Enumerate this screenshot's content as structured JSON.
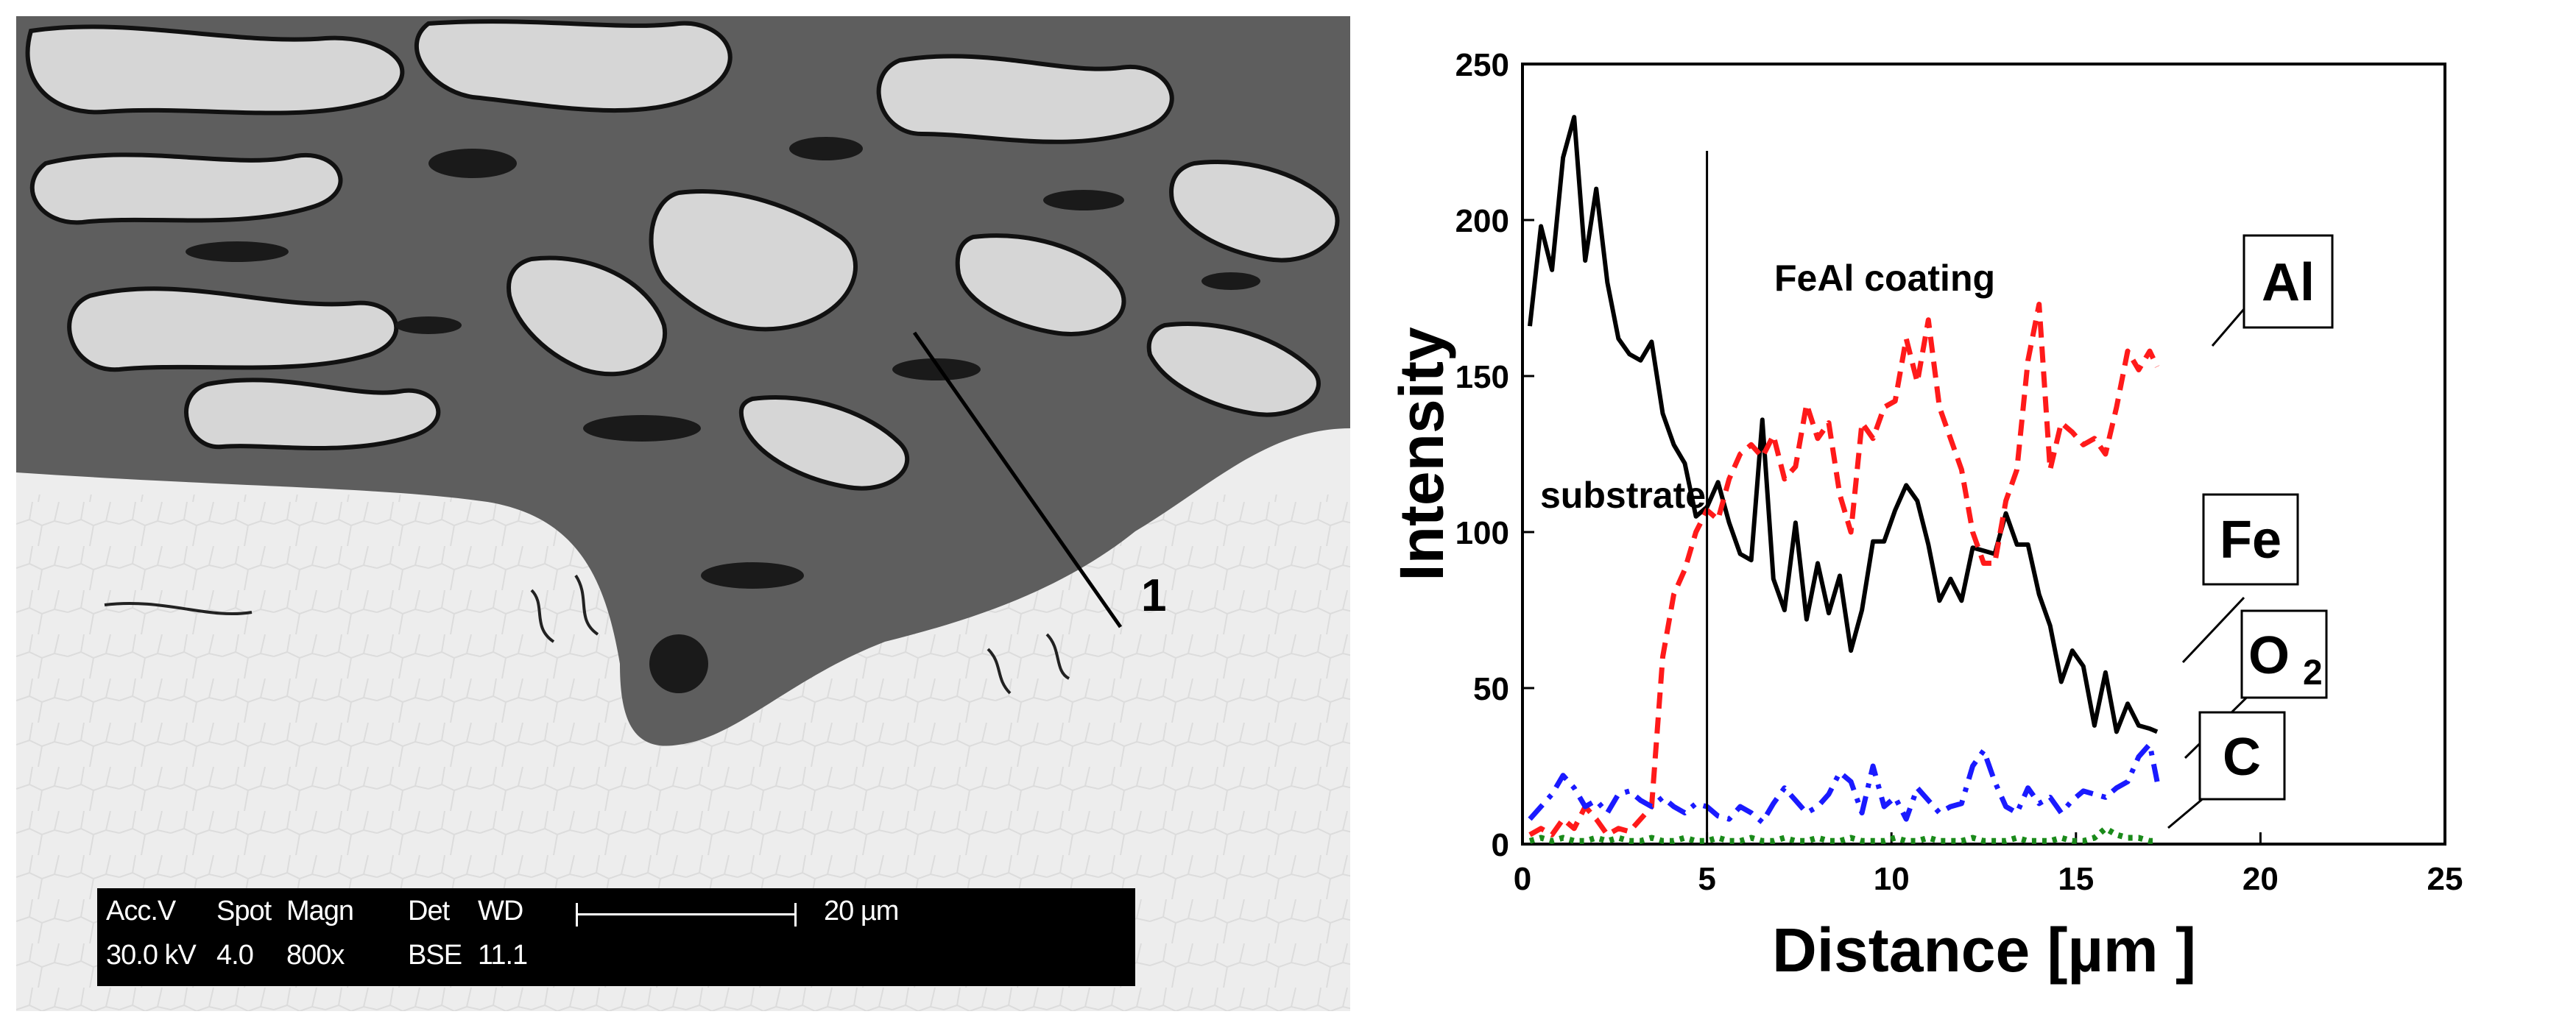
{
  "sem_image": {
    "databar": {
      "row1": [
        "Acc.V",
        "Spot",
        "Magn",
        "Det",
        "WD"
      ],
      "row2": [
        "30.0 kV",
        "4.0",
        "800x",
        "BSE",
        "11.1"
      ],
      "scale_label": "20 µm"
    },
    "marker": "1"
  },
  "chart_data": {
    "type": "line",
    "xlabel": "Distance [µm ]",
    "ylabel": "Intensity",
    "xlim": [
      0,
      25
    ],
    "ylim": [
      0,
      250
    ],
    "xticks": [
      "0",
      "5",
      "10",
      "15",
      "20",
      "25"
    ],
    "yticks": [
      "0",
      "50",
      "100",
      "150",
      "200",
      "250"
    ],
    "grid": false,
    "vline_x": 5,
    "annotations": {
      "substrate": "substrate",
      "coating": "FeAl coating",
      "al": "Al",
      "fe": "Fe",
      "o2_base": "O",
      "o2_sub": "2",
      "c": "C"
    },
    "colors": {
      "Fe": "#000000",
      "Al": "#ff1a1a",
      "O2": "#1a1aff",
      "C": "#1a8a1a"
    },
    "series": [
      {
        "key": "Fe",
        "style": "solid",
        "x": [
          0.2,
          0.5,
          0.8,
          1.1,
          1.4,
          1.7,
          2.0,
          2.3,
          2.6,
          2.9,
          3.2,
          3.5,
          3.8,
          4.1,
          4.4,
          4.7,
          5.0,
          5.3,
          5.6,
          5.9,
          6.2,
          6.5,
          6.8,
          7.1,
          7.4,
          7.7,
          8.0,
          8.3,
          8.6,
          8.9,
          9.2,
          9.5,
          9.8,
          10.1,
          10.4,
          10.7,
          11.0,
          11.3,
          11.6,
          11.9,
          12.2,
          12.5,
          12.8,
          13.1,
          13.4,
          13.7,
          14.0,
          14.3,
          14.6,
          14.9,
          15.2,
          15.5,
          15.8,
          16.1,
          16.4,
          16.7,
          17.0,
          17.2
        ],
        "y": [
          166,
          198,
          184,
          220,
          233,
          187,
          210,
          180,
          162,
          157,
          155,
          161,
          138,
          128,
          122,
          105,
          108,
          116,
          103,
          93,
          91,
          136,
          85,
          75,
          103,
          72,
          90,
          74,
          86,
          62,
          75,
          97,
          97,
          107,
          115,
          110,
          96,
          78,
          85,
          78,
          95,
          94,
          93,
          106,
          96,
          96,
          80,
          70,
          52,
          62,
          57,
          38,
          55,
          36,
          45,
          38,
          37,
          36
        ]
      },
      {
        "key": "Al",
        "style": "dashed",
        "x": [
          0.2,
          0.5,
          0.8,
          1.1,
          1.4,
          1.7,
          2.0,
          2.3,
          2.6,
          2.9,
          3.2,
          3.5,
          3.8,
          4.1,
          4.4,
          4.7,
          5.0,
          5.3,
          5.6,
          5.9,
          6.2,
          6.5,
          6.8,
          7.1,
          7.4,
          7.7,
          8.0,
          8.3,
          8.6,
          8.9,
          9.2,
          9.5,
          9.8,
          10.1,
          10.4,
          10.7,
          11.0,
          11.3,
          11.6,
          11.9,
          12.2,
          12.5,
          12.8,
          13.1,
          13.4,
          13.7,
          14.0,
          14.3,
          14.6,
          14.9,
          15.2,
          15.5,
          15.8,
          16.1,
          16.4,
          16.7,
          17.0,
          17.2
        ],
        "y": [
          3,
          5,
          3,
          8,
          5,
          12,
          8,
          3,
          5,
          4,
          8,
          12,
          60,
          80,
          88,
          100,
          107,
          104,
          117,
          125,
          128,
          124,
          131,
          117,
          121,
          141,
          130,
          135,
          112,
          100,
          135,
          130,
          140,
          142,
          162,
          148,
          168,
          140,
          130,
          120,
          100,
          90,
          90,
          110,
          120,
          155,
          173,
          120,
          135,
          132,
          128,
          130,
          125,
          140,
          158,
          152,
          158,
          153
        ]
      },
      {
        "key": "O2",
        "style": "dashdot",
        "x": [
          0.2,
          0.5,
          0.8,
          1.1,
          1.4,
          1.7,
          2.0,
          2.3,
          2.6,
          2.9,
          3.2,
          3.5,
          3.8,
          4.1,
          4.4,
          4.7,
          5.0,
          5.3,
          5.6,
          5.9,
          6.2,
          6.5,
          6.8,
          7.1,
          7.4,
          7.7,
          8.0,
          8.3,
          8.6,
          8.9,
          9.2,
          9.5,
          9.8,
          10.1,
          10.4,
          10.7,
          11.0,
          11.3,
          11.6,
          11.9,
          12.2,
          12.5,
          12.8,
          13.1,
          13.4,
          13.7,
          14.0,
          14.3,
          14.6,
          14.9,
          15.2,
          15.5,
          15.8,
          16.1,
          16.4,
          16.7,
          17.0,
          17.2
        ],
        "y": [
          8,
          12,
          16,
          22,
          18,
          12,
          14,
          10,
          16,
          17,
          14,
          12,
          15,
          12,
          10,
          13,
          12,
          9,
          8,
          12,
          10,
          7,
          13,
          18,
          14,
          10,
          12,
          16,
          23,
          20,
          10,
          25,
          12,
          15,
          8,
          18,
          14,
          10,
          12,
          13,
          25,
          30,
          20,
          12,
          10,
          18,
          13,
          15,
          10,
          14,
          17,
          16,
          15,
          18,
          20,
          28,
          32,
          20
        ]
      },
      {
        "key": "C",
        "style": "dotted",
        "x": [
          0.2,
          0.5,
          0.8,
          1.1,
          1.4,
          1.7,
          2.0,
          2.3,
          2.6,
          2.9,
          3.2,
          3.5,
          3.8,
          4.1,
          4.4,
          4.7,
          5.0,
          5.3,
          5.6,
          5.9,
          6.2,
          6.5,
          6.8,
          7.1,
          7.4,
          7.7,
          8.0,
          8.3,
          8.6,
          8.9,
          9.2,
          9.5,
          9.8,
          10.1,
          10.4,
          10.7,
          11.0,
          11.3,
          11.6,
          11.9,
          12.2,
          12.5,
          12.8,
          13.1,
          13.4,
          13.7,
          14.0,
          14.3,
          14.6,
          14.9,
          15.2,
          15.5,
          15.8,
          16.1,
          16.4,
          16.7,
          17.0,
          17.2
        ],
        "y": [
          1,
          2,
          1,
          2,
          1,
          1,
          2,
          1,
          2,
          1,
          1,
          2,
          1,
          1,
          2,
          1,
          1,
          2,
          1,
          1,
          2,
          1,
          1,
          2,
          1,
          1,
          2,
          1,
          1,
          2,
          1,
          1,
          1,
          2,
          1,
          1,
          2,
          1,
          1,
          1,
          2,
          1,
          1,
          1,
          2,
          1,
          1,
          1,
          2,
          1,
          1,
          2,
          5,
          3,
          2,
          2,
          1,
          1
        ]
      }
    ]
  }
}
